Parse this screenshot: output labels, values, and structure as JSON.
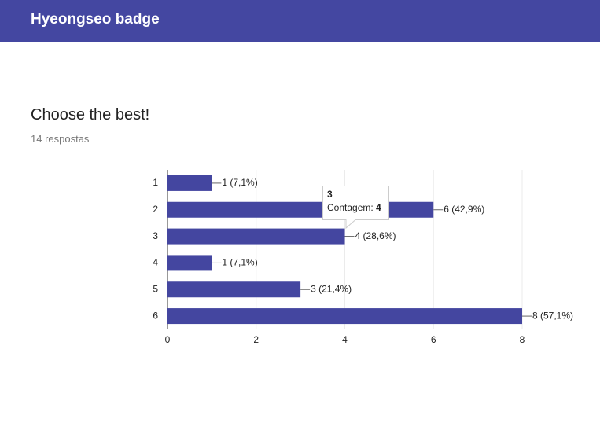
{
  "header": {
    "title": "Hyeongseo badge"
  },
  "question": {
    "title": "Choose the best!",
    "responses": "14 respostas"
  },
  "chart_data": {
    "type": "hbar",
    "categories": [
      "1",
      "2",
      "3",
      "4",
      "5",
      "6"
    ],
    "values": [
      1,
      6,
      4,
      1,
      3,
      8
    ],
    "value_labels": [
      "1 (7,1%)",
      "6 (42,9%)",
      "4 (28,6%)",
      "1 (7,1%)",
      "3 (21,4%)",
      "8 (57,1%)"
    ],
    "color": "#4446a0",
    "xlim": [
      0,
      8
    ],
    "xticks": [
      0,
      2,
      4,
      6,
      8
    ],
    "grid": true,
    "tooltip": {
      "category": "3",
      "label": "Contagem:",
      "value": 4
    }
  }
}
